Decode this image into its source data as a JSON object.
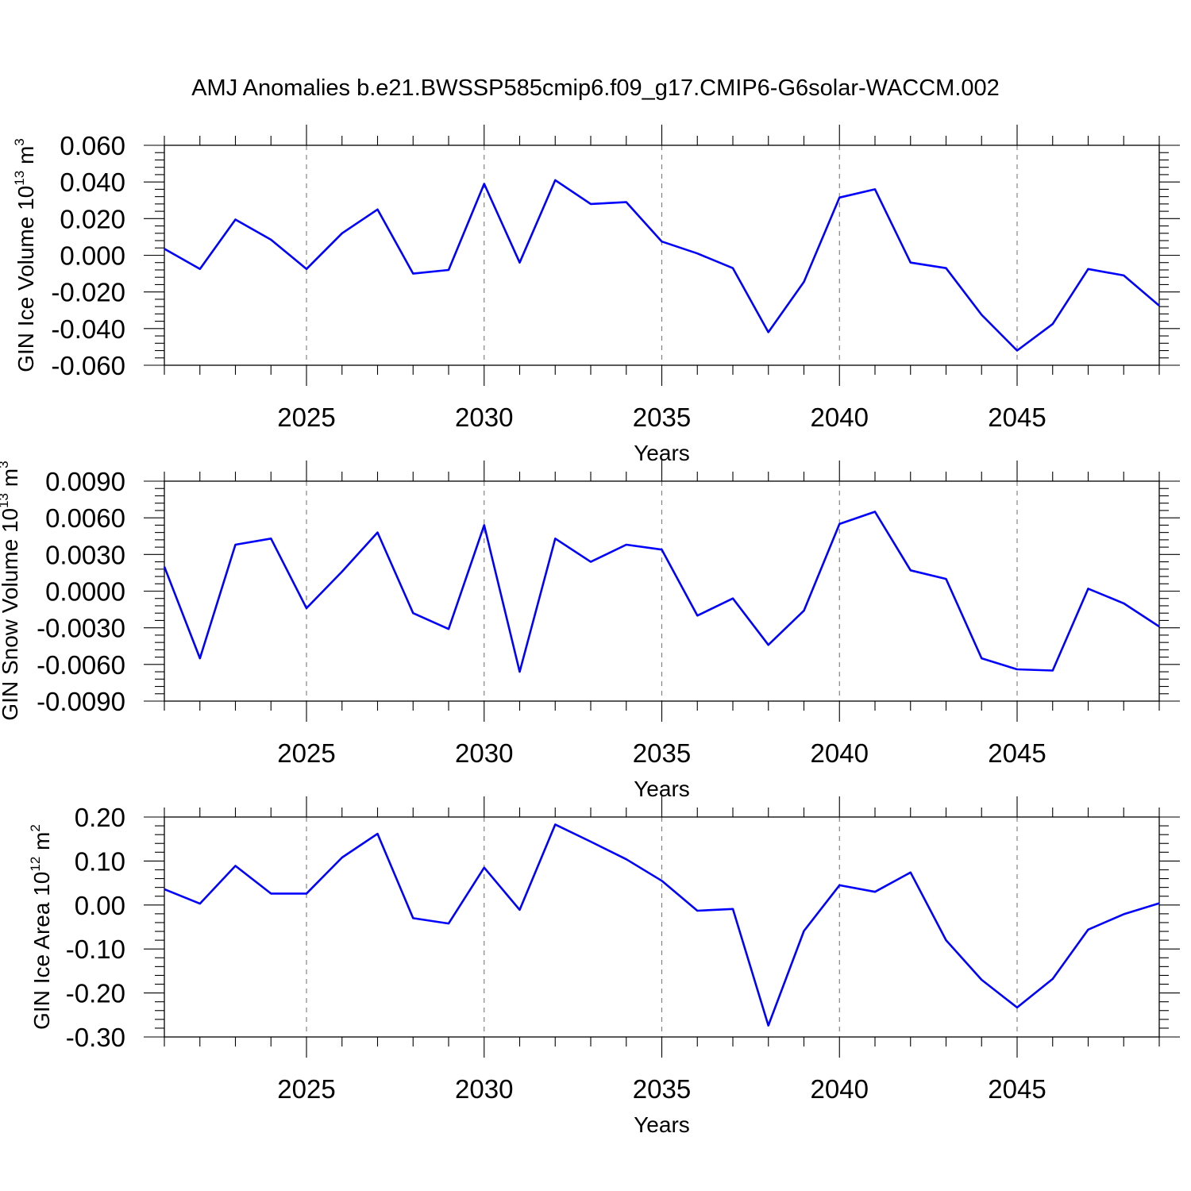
{
  "title": "AMJ Anomalies b.e21.BWSSP585cmip6.f09_g17.CMIP6-G6solar-WACCM.002",
  "colors": {
    "line": "#0000ff",
    "grid": "#7a7a7a",
    "axis": "#000000"
  },
  "chart_data": [
    {
      "type": "line",
      "xlabel": "Years",
      "ylabel": {
        "text": "GIN Ice Volume 10",
        "sup": "13",
        "unit": " m",
        "unit_sup": "3"
      },
      "xlim": [
        2021,
        2049
      ],
      "ylim": [
        -0.06,
        0.06
      ],
      "xticks": [
        2025,
        2030,
        2035,
        2040,
        2045
      ],
      "xtick_labels": [
        "2025",
        "2030",
        "2035",
        "2040",
        "2045"
      ],
      "yticks": [
        -0.06,
        -0.04,
        -0.02,
        0.0,
        0.02,
        0.04,
        0.06
      ],
      "ytick_labels": [
        "-0.060",
        "-0.040",
        "-0.020",
        "0.000",
        "0.020",
        "0.040",
        "0.060"
      ],
      "grid": "vertical dashed at major x ticks",
      "series": [
        {
          "x": [
            2021,
            2022,
            2023,
            2024,
            2025,
            2026,
            2027,
            2028,
            2029,
            2030,
            2031,
            2032,
            2033,
            2034,
            2035,
            2036,
            2037,
            2038,
            2039,
            2040,
            2041,
            2042,
            2043,
            2044,
            2045,
            2046,
            2047,
            2048,
            2049
          ],
          "values": [
            0.0035,
            -0.0075,
            0.0195,
            0.0085,
            -0.0075,
            0.012,
            0.025,
            -0.01,
            -0.008,
            0.039,
            -0.004,
            0.041,
            0.028,
            0.029,
            0.0075,
            0.001,
            -0.007,
            -0.042,
            -0.0145,
            0.0315,
            0.036,
            -0.004,
            -0.007,
            -0.0325,
            -0.052,
            -0.0375,
            -0.0075,
            -0.011,
            -0.0275
          ]
        }
      ]
    },
    {
      "type": "line",
      "xlabel": "Years",
      "ylabel": {
        "text": "GIN Snow Volume 10",
        "sup": "13",
        "unit": " m",
        "unit_sup": "3"
      },
      "xlim": [
        2021,
        2049
      ],
      "ylim": [
        -0.009,
        0.009
      ],
      "xticks": [
        2025,
        2030,
        2035,
        2040,
        2045
      ],
      "xtick_labels": [
        "2025",
        "2030",
        "2035",
        "2040",
        "2045"
      ],
      "yticks": [
        -0.009,
        -0.006,
        -0.003,
        0.0,
        0.003,
        0.006,
        0.009
      ],
      "ytick_labels": [
        "-0.0090",
        "-0.0060",
        "-0.0030",
        "0.0000",
        "0.0030",
        "0.0060",
        "0.0090"
      ],
      "grid": "vertical dashed at major x ticks",
      "series": [
        {
          "x": [
            2021,
            2022,
            2023,
            2024,
            2025,
            2026,
            2027,
            2028,
            2029,
            2030,
            2031,
            2032,
            2033,
            2034,
            2035,
            2036,
            2037,
            2038,
            2039,
            2040,
            2041,
            2042,
            2043,
            2044,
            2045,
            2046,
            2047,
            2048,
            2049
          ],
          "values": [
            0.002,
            -0.0055,
            0.0038,
            0.0043,
            -0.0014,
            0.0016,
            0.0048,
            -0.0018,
            -0.0031,
            0.0054,
            -0.0066,
            0.0043,
            0.0024,
            0.0038,
            0.0034,
            -0.002,
            -0.0006,
            -0.0044,
            -0.0016,
            0.0055,
            0.0065,
            0.0017,
            0.001,
            -0.0055,
            -0.0064,
            -0.0065,
            0.0002,
            -0.001,
            -0.0029
          ]
        }
      ]
    },
    {
      "type": "line",
      "xlabel": "Years",
      "ylabel": {
        "text": "GIN Ice Area 10",
        "sup": "12",
        "unit": " m",
        "unit_sup": "2"
      },
      "xlim": [
        2021,
        2049
      ],
      "ylim": [
        -0.3,
        0.2
      ],
      "xticks": [
        2025,
        2030,
        2035,
        2040,
        2045
      ],
      "xtick_labels": [
        "2025",
        "2030",
        "2035",
        "2040",
        "2045"
      ],
      "yticks": [
        -0.3,
        -0.2,
        -0.1,
        0.0,
        0.1,
        0.2
      ],
      "ytick_labels": [
        "-0.30",
        "-0.20",
        "-0.10",
        "0.00",
        "0.10",
        "0.20"
      ],
      "grid": "vertical dashed at major x ticks",
      "series": [
        {
          "x": [
            2021,
            2022,
            2023,
            2024,
            2025,
            2026,
            2027,
            2028,
            2029,
            2030,
            2031,
            2032,
            2033,
            2034,
            2035,
            2036,
            2037,
            2038,
            2039,
            2040,
            2041,
            2042,
            2043,
            2044,
            2045,
            2046,
            2047,
            2048,
            2049
          ],
          "values": [
            0.036,
            0.003,
            0.089,
            0.026,
            0.026,
            0.108,
            0.162,
            -0.03,
            -0.042,
            0.085,
            -0.011,
            0.183,
            0.144,
            0.104,
            0.055,
            -0.013,
            -0.009,
            -0.274,
            -0.059,
            0.045,
            0.03,
            0.074,
            -0.08,
            -0.17,
            -0.233,
            -0.168,
            -0.056,
            -0.021,
            0.004
          ]
        }
      ]
    }
  ]
}
